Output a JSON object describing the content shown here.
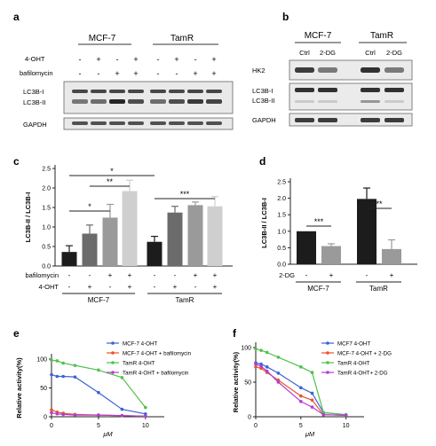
{
  "panels": {
    "a": {
      "letter": "a",
      "groups": [
        "MCF-7",
        "TamR"
      ],
      "row_labels": [
        "4-OHT",
        "bafilomycin"
      ],
      "ohts": [
        "-",
        "+",
        "-",
        "+",
        "-",
        "+",
        "-",
        "+"
      ],
      "bafs": [
        "-",
        "-",
        "+",
        "+",
        "-",
        "-",
        "+",
        "+"
      ],
      "band_labels": [
        "LC3B-I",
        "LC3B-II",
        "GAPDH"
      ]
    },
    "b": {
      "letter": "b",
      "groups": [
        "MCF-7",
        "TamR"
      ],
      "lanes": [
        "Ctrl",
        "2-DG",
        "Ctrl",
        "2-DG"
      ],
      "band_labels": [
        "HK2",
        "LC3B-I",
        "LC3B-II",
        "GAPDH"
      ]
    },
    "c": {
      "letter": "c"
    },
    "d": {
      "letter": "d"
    },
    "e": {
      "letter": "e"
    },
    "f": {
      "letter": "f"
    }
  },
  "chart_data": [
    {
      "id": "c",
      "type": "bar",
      "ylabel": "LC3B-II / LC3B-I",
      "ylim": [
        0,
        2.5
      ],
      "yticks": [
        "0.0",
        "0.5",
        "1.0",
        "1.5",
        "2.0",
        "2.5"
      ],
      "values": [
        0.36,
        0.83,
        1.24,
        1.92,
        0.62,
        1.37,
        1.56,
        1.53
      ],
      "errors": [
        0.16,
        0.22,
        0.34,
        0.28,
        0.14,
        0.16,
        0.08,
        0.25
      ],
      "colors": [
        "#1c1c1c",
        "#6b6b6b",
        "#9a9a9a",
        "#cfcfcf",
        "#1c1c1c",
        "#6b6b6b",
        "#9a9a9a",
        "#cfcfcf"
      ],
      "row1_label": "bafilomycin",
      "row2_label": "4-OHT",
      "row1": [
        "-",
        "-",
        "+",
        "+",
        "-",
        "-",
        "+",
        "+"
      ],
      "row2": [
        "-",
        "+",
        "-",
        "+",
        "-",
        "+",
        "-",
        "+"
      ],
      "group_labels": [
        "MCF-7",
        "TamR"
      ],
      "significance": [
        {
          "from": 0,
          "to": 2,
          "text": "*"
        },
        {
          "from": 1,
          "to": 3,
          "text": "**"
        },
        {
          "from": 0,
          "to": 4,
          "text": "*"
        },
        {
          "from": 4,
          "to": 7,
          "text": "***"
        }
      ]
    },
    {
      "id": "d",
      "type": "bar",
      "ylabel": "LC3B-II / LC3B-I",
      "ylim": [
        0,
        2.5
      ],
      "yticks": [
        "0.0",
        "0.5",
        "1.0",
        "1.5",
        "2.0",
        "2.5"
      ],
      "values": [
        1.0,
        0.55,
        1.98,
        0.46
      ],
      "errors": [
        0.0,
        0.07,
        0.33,
        0.28
      ],
      "colors": [
        "#1c1c1c",
        "#9a9a9a",
        "#1c1c1c",
        "#9a9a9a"
      ],
      "row1_label": "2-DG",
      "row1": [
        "-",
        "+",
        "-",
        "+"
      ],
      "group_labels": [
        "MCF-7",
        "TamR"
      ],
      "significance": [
        {
          "from": 0,
          "to": 1,
          "text": "***"
        },
        {
          "from": 2,
          "to": 3,
          "text": "**"
        }
      ]
    },
    {
      "id": "e",
      "type": "line",
      "xlabel": "μM",
      "ylabel": "Relative activity(%)",
      "xlim": [
        0,
        12
      ],
      "ylim": [
        0,
        100
      ],
      "xticks": [
        "0",
        "5",
        "10"
      ],
      "yticks": [
        "0",
        "50",
        "100"
      ],
      "series": [
        {
          "name": "MCF-7 4-OHT",
          "color": "#3b62d9",
          "x": [
            0,
            0.6,
            1.25,
            2.5,
            5,
            7.5,
            10
          ],
          "y": [
            73,
            70,
            70,
            69,
            42,
            13,
            5
          ]
        },
        {
          "name": "MCF-7 4-OHT + bafilomycin",
          "color": "#e8542e",
          "x": [
            0,
            0.6,
            1.25,
            2.5,
            5,
            7.5,
            10
          ],
          "y": [
            12,
            8,
            6,
            4,
            3,
            2,
            1
          ]
        },
        {
          "name": "TamR 4-OHT",
          "color": "#4fc24a",
          "x": [
            0,
            0.6,
            1.25,
            2.5,
            5,
            7.5,
            10
          ],
          "y": [
            98,
            97,
            93,
            89,
            81,
            68,
            16
          ]
        },
        {
          "name": "TamR 4-OHT + bafilomycin",
          "color": "#b13ed1",
          "x": [
            0,
            0.6,
            1.25,
            2.5,
            5,
            7.5,
            10
          ],
          "y": [
            7,
            5,
            4,
            3,
            3,
            2,
            1
          ]
        }
      ]
    },
    {
      "id": "f",
      "type": "line",
      "xlabel": "μM",
      "ylabel": "Relative activity(%)",
      "xlim": [
        0,
        12
      ],
      "ylim": [
        0,
        100
      ],
      "xticks": [
        "0",
        "5",
        "10"
      ],
      "yticks": [
        "0",
        "50",
        "100"
      ],
      "series": [
        {
          "name": "MCF7 4-OHT",
          "color": "#3b62d9",
          "x": [
            0,
            0.6,
            1.25,
            2.5,
            5,
            6.25,
            7.5,
            10
          ],
          "y": [
            78,
            76,
            72,
            63,
            42,
            34,
            6,
            3
          ]
        },
        {
          "name": "MCF-7 4-OHT + 2-DG",
          "color": "#e8542e",
          "x": [
            0,
            0.6,
            1.25,
            2.5,
            5,
            6.25,
            7.5,
            10
          ],
          "y": [
            72,
            70,
            64,
            53,
            30,
            24,
            3,
            2
          ]
        },
        {
          "name": "TamR 4-OHT",
          "color": "#4fc24a",
          "x": [
            0,
            0.6,
            1.25,
            2.5,
            5,
            6.25,
            7.5,
            10
          ],
          "y": [
            98,
            96,
            93,
            86,
            72,
            64,
            6,
            3
          ]
        },
        {
          "name": "TamR 4-OHT+ 2-DG",
          "color": "#b13ed1",
          "x": [
            0,
            0.6,
            1.25,
            2.5,
            5,
            6.25,
            7.5,
            10
          ],
          "y": [
            76,
            73,
            66,
            50,
            22,
            14,
            3,
            2
          ]
        }
      ]
    }
  ]
}
